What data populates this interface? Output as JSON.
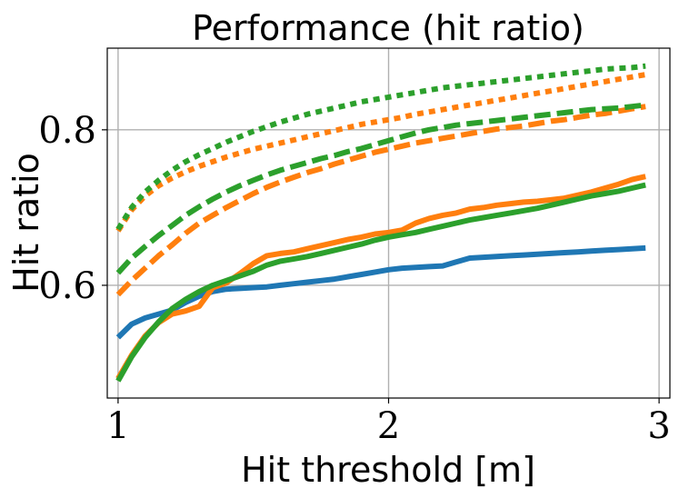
{
  "chart_data": {
    "type": "line",
    "title": "Performance (hit ratio)",
    "xlabel": "Hit threshold [m]",
    "ylabel": "Hit ratio",
    "xlim": [
      0.96,
      3.04
    ],
    "ylim": [
      0.455,
      0.905
    ],
    "xticks": [
      1,
      2,
      3
    ],
    "xtick_labels": [
      "1",
      "2",
      "3"
    ],
    "yticks": [
      0.6,
      0.8
    ],
    "ytick_labels": [
      "0.6",
      "0.8"
    ],
    "grid": true,
    "colors": {
      "blue": "#1f77b4",
      "orange": "#ff7f0e",
      "green": "#2ca02c",
      "grid": "#b0b0b0",
      "axes": "#000000"
    },
    "series": [
      {
        "name": "blue-solid",
        "color": "blue",
        "style": "solid",
        "x": [
          1.0,
          1.05,
          1.1,
          1.15,
          1.2,
          1.25,
          1.3,
          1.35,
          1.4,
          1.45,
          1.5,
          1.55,
          1.6,
          1.65,
          1.7,
          1.75,
          1.8,
          1.85,
          1.9,
          1.95,
          2.0,
          2.05,
          2.1,
          2.15,
          2.2,
          2.25,
          2.3,
          2.35,
          2.4,
          2.45,
          2.5,
          2.55,
          2.6,
          2.65,
          2.7,
          2.75,
          2.8,
          2.85,
          2.9,
          2.95
        ],
        "y": [
          0.533,
          0.55,
          0.558,
          0.563,
          0.568,
          0.578,
          0.586,
          0.592,
          0.595,
          0.596,
          0.597,
          0.598,
          0.6,
          0.602,
          0.604,
          0.606,
          0.608,
          0.611,
          0.614,
          0.617,
          0.62,
          0.622,
          0.623,
          0.624,
          0.625,
          0.63,
          0.635,
          0.636,
          0.637,
          0.638,
          0.639,
          0.64,
          0.641,
          0.642,
          0.643,
          0.644,
          0.645,
          0.646,
          0.647,
          0.648
        ]
      },
      {
        "name": "orange-solid",
        "color": "orange",
        "style": "solid",
        "x": [
          1.0,
          1.05,
          1.1,
          1.15,
          1.2,
          1.25,
          1.3,
          1.35,
          1.4,
          1.45,
          1.5,
          1.55,
          1.6,
          1.65,
          1.7,
          1.75,
          1.8,
          1.85,
          1.9,
          1.95,
          2.0,
          2.05,
          2.1,
          2.15,
          2.2,
          2.25,
          2.3,
          2.35,
          2.4,
          2.45,
          2.5,
          2.55,
          2.6,
          2.65,
          2.7,
          2.75,
          2.8,
          2.85,
          2.9,
          2.95
        ],
        "y": [
          0.48,
          0.51,
          0.535,
          0.552,
          0.563,
          0.567,
          0.573,
          0.597,
          0.603,
          0.615,
          0.628,
          0.638,
          0.641,
          0.643,
          0.647,
          0.651,
          0.655,
          0.659,
          0.662,
          0.666,
          0.668,
          0.671,
          0.68,
          0.686,
          0.69,
          0.693,
          0.698,
          0.7,
          0.703,
          0.705,
          0.707,
          0.708,
          0.71,
          0.712,
          0.716,
          0.72,
          0.725,
          0.73,
          0.736,
          0.74
        ]
      },
      {
        "name": "green-solid",
        "color": "green",
        "style": "solid",
        "x": [
          1.0,
          1.05,
          1.1,
          1.15,
          1.2,
          1.25,
          1.3,
          1.35,
          1.4,
          1.45,
          1.5,
          1.55,
          1.6,
          1.65,
          1.7,
          1.75,
          1.8,
          1.85,
          1.9,
          1.95,
          2.0,
          2.05,
          2.1,
          2.15,
          2.2,
          2.25,
          2.3,
          2.35,
          2.4,
          2.45,
          2.5,
          2.55,
          2.6,
          2.65,
          2.7,
          2.75,
          2.8,
          2.85,
          2.9,
          2.95
        ],
        "y": [
          0.477,
          0.508,
          0.533,
          0.553,
          0.57,
          0.582,
          0.592,
          0.6,
          0.606,
          0.612,
          0.618,
          0.626,
          0.631,
          0.634,
          0.637,
          0.641,
          0.645,
          0.649,
          0.653,
          0.658,
          0.662,
          0.665,
          0.668,
          0.672,
          0.676,
          0.68,
          0.684,
          0.687,
          0.69,
          0.693,
          0.696,
          0.699,
          0.703,
          0.707,
          0.711,
          0.715,
          0.718,
          0.721,
          0.725,
          0.729
        ]
      },
      {
        "name": "orange-dashed",
        "color": "orange",
        "style": "dashed",
        "x": [
          1.0,
          1.05,
          1.1,
          1.15,
          1.2,
          1.25,
          1.3,
          1.35,
          1.4,
          1.45,
          1.5,
          1.55,
          1.6,
          1.65,
          1.7,
          1.75,
          1.8,
          1.85,
          1.9,
          1.95,
          2.0,
          2.05,
          2.1,
          2.15,
          2.2,
          2.25,
          2.3,
          2.35,
          2.4,
          2.45,
          2.5,
          2.55,
          2.6,
          2.65,
          2.7,
          2.75,
          2.8,
          2.85,
          2.9,
          2.95
        ],
        "y": [
          0.588,
          0.606,
          0.622,
          0.638,
          0.652,
          0.667,
          0.68,
          0.69,
          0.7,
          0.709,
          0.718,
          0.726,
          0.733,
          0.739,
          0.745,
          0.75,
          0.756,
          0.761,
          0.766,
          0.771,
          0.775,
          0.779,
          0.783,
          0.786,
          0.789,
          0.792,
          0.795,
          0.798,
          0.801,
          0.803,
          0.805,
          0.808,
          0.811,
          0.813,
          0.816,
          0.819,
          0.821,
          0.824,
          0.827,
          0.83
        ]
      },
      {
        "name": "green-dashed",
        "color": "green",
        "style": "dashed",
        "x": [
          1.0,
          1.05,
          1.1,
          1.15,
          1.2,
          1.25,
          1.3,
          1.35,
          1.4,
          1.45,
          1.5,
          1.55,
          1.6,
          1.65,
          1.7,
          1.75,
          1.8,
          1.85,
          1.9,
          1.95,
          2.0,
          2.05,
          2.1,
          2.15,
          2.2,
          2.25,
          2.3,
          2.35,
          2.4,
          2.45,
          2.5,
          2.55,
          2.6,
          2.65,
          2.7,
          2.75,
          2.8,
          2.85,
          2.9,
          2.95
        ],
        "y": [
          0.616,
          0.635,
          0.65,
          0.664,
          0.677,
          0.69,
          0.701,
          0.711,
          0.72,
          0.728,
          0.735,
          0.742,
          0.748,
          0.753,
          0.758,
          0.763,
          0.767,
          0.772,
          0.776,
          0.781,
          0.786,
          0.791,
          0.796,
          0.8,
          0.803,
          0.806,
          0.808,
          0.81,
          0.812,
          0.814,
          0.816,
          0.818,
          0.82,
          0.822,
          0.824,
          0.826,
          0.827,
          0.828,
          0.83,
          0.832
        ]
      },
      {
        "name": "orange-dotted",
        "color": "orange",
        "style": "dotted",
        "x": [
          1.0,
          1.05,
          1.1,
          1.15,
          1.2,
          1.25,
          1.3,
          1.35,
          1.4,
          1.45,
          1.5,
          1.55,
          1.6,
          1.65,
          1.7,
          1.75,
          1.8,
          1.85,
          1.9,
          1.95,
          2.0,
          2.05,
          2.1,
          2.15,
          2.2,
          2.25,
          2.3,
          2.35,
          2.4,
          2.45,
          2.5,
          2.55,
          2.6,
          2.65,
          2.7,
          2.75,
          2.8,
          2.85,
          2.9,
          2.95
        ],
        "y": [
          0.67,
          0.697,
          0.715,
          0.728,
          0.738,
          0.746,
          0.753,
          0.759,
          0.765,
          0.77,
          0.775,
          0.779,
          0.783,
          0.787,
          0.791,
          0.795,
          0.799,
          0.803,
          0.807,
          0.81,
          0.813,
          0.816,
          0.82,
          0.823,
          0.826,
          0.829,
          0.832,
          0.835,
          0.838,
          0.841,
          0.844,
          0.847,
          0.85,
          0.853,
          0.856,
          0.859,
          0.862,
          0.865,
          0.868,
          0.871
        ]
      },
      {
        "name": "green-dotted",
        "color": "green",
        "style": "dotted",
        "x": [
          1.0,
          1.05,
          1.1,
          1.15,
          1.2,
          1.25,
          1.3,
          1.35,
          1.4,
          1.45,
          1.5,
          1.55,
          1.6,
          1.65,
          1.7,
          1.75,
          1.8,
          1.85,
          1.9,
          1.95,
          2.0,
          2.05,
          2.1,
          2.15,
          2.2,
          2.25,
          2.3,
          2.35,
          2.4,
          2.45,
          2.5,
          2.55,
          2.6,
          2.65,
          2.7,
          2.75,
          2.8,
          2.85,
          2.9,
          2.95
        ],
        "y": [
          0.672,
          0.7,
          0.72,
          0.735,
          0.748,
          0.759,
          0.768,
          0.776,
          0.784,
          0.791,
          0.798,
          0.804,
          0.81,
          0.815,
          0.82,
          0.824,
          0.828,
          0.832,
          0.836,
          0.839,
          0.842,
          0.845,
          0.848,
          0.851,
          0.854,
          0.856,
          0.858,
          0.86,
          0.862,
          0.864,
          0.866,
          0.868,
          0.87,
          0.872,
          0.874,
          0.876,
          0.878,
          0.879,
          0.88,
          0.882
        ]
      }
    ]
  }
}
